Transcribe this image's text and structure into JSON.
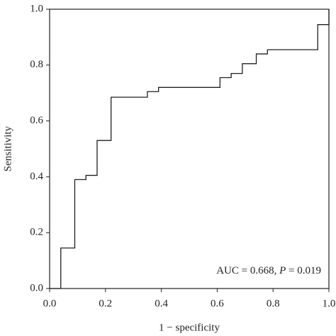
{
  "chart_data": {
    "type": "line",
    "xlabel": "1 − specificity",
    "ylabel": "Sensitivity",
    "annotation": [
      "AUC = 0.668, ",
      "P",
      " = 0.019"
    ],
    "x": [
      0,
      0.04,
      0.04,
      0.09,
      0.09,
      0.13,
      0.13,
      0.17,
      0.17,
      0.22,
      0.22,
      0.35,
      0.35,
      0.39,
      0.39,
      0.61,
      0.61,
      0.65,
      0.65,
      0.69,
      0.69,
      0.74,
      0.74,
      0.78,
      0.78,
      0.96,
      0.96,
      1,
      1
    ],
    "values": [
      0,
      0,
      0.145,
      0.145,
      0.39,
      0.39,
      0.405,
      0.405,
      0.53,
      0.53,
      0.685,
      0.685,
      0.705,
      0.705,
      0.72,
      0.72,
      0.755,
      0.755,
      0.77,
      0.77,
      0.805,
      0.805,
      0.84,
      0.84,
      0.855,
      0.855,
      0.945,
      0.945,
      1
    ],
    "color": "#231f20",
    "xlim": [
      0,
      1
    ],
    "ylim": [
      0,
      1
    ],
    "xticks": [
      {
        "value": 0,
        "label": "0.0"
      },
      {
        "value": 0.2,
        "label": "0.2"
      },
      {
        "value": 0.4,
        "label": "0.4"
      },
      {
        "value": 0.6,
        "label": "0.6"
      },
      {
        "value": 0.8,
        "label": "0.8"
      },
      {
        "value": 1,
        "label": "1.0"
      }
    ],
    "yticks": [
      {
        "value": 0,
        "label": "0.0"
      },
      {
        "value": 0.2,
        "label": "0.2"
      },
      {
        "value": 0.4,
        "label": "0.4"
      },
      {
        "value": 0.6,
        "label": "0.6"
      },
      {
        "value": 0.8,
        "label": "0.8"
      },
      {
        "value": 1,
        "label": "1.0"
      }
    ]
  }
}
